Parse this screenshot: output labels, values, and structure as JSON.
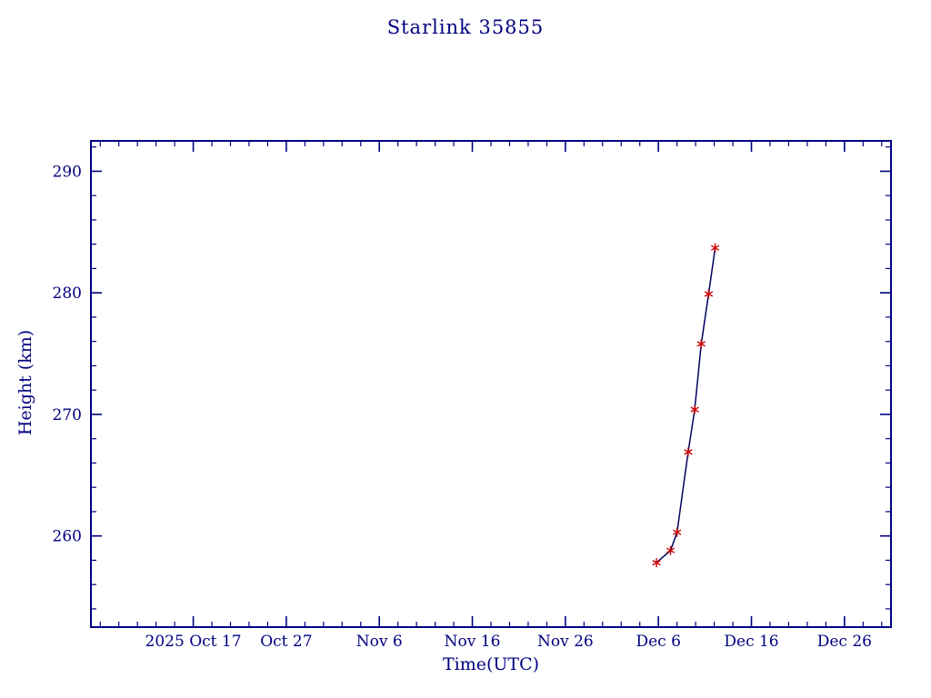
{
  "chart_data": {
    "type": "line",
    "title": "Starlink 35855",
    "xlabel": "Time(UTC)",
    "ylabel": "Height (km)",
    "xlim": [
      0,
      86
    ],
    "x_axis_note": "x values are days; 0 = left edge of frame, tick values align with date labels",
    "ylim": [
      252.5,
      292.5
    ],
    "x_ticks": [
      {
        "label": "2025 Oct 17",
        "value": 11
      },
      {
        "label": "Oct 27",
        "value": 21
      },
      {
        "label": "Nov 6",
        "value": 31
      },
      {
        "label": "Nov 16",
        "value": 41
      },
      {
        "label": "Nov 26",
        "value": 51
      },
      {
        "label": "Dec 6",
        "value": 61
      },
      {
        "label": "Dec 16",
        "value": 71
      },
      {
        "label": "Dec 26",
        "value": 81
      }
    ],
    "x_minor_step": 2,
    "y_ticks": [
      260,
      270,
      280,
      290
    ],
    "y_minor_step": 2,
    "grid": false,
    "legend": "none",
    "series": [
      {
        "name": "height-km",
        "marker": "star",
        "points": [
          {
            "x": 60.8,
            "y": 257.8
          },
          {
            "x": 62.3,
            "y": 258.8
          },
          {
            "x": 63.0,
            "y": 260.3
          },
          {
            "x": 64.2,
            "y": 266.9
          },
          {
            "x": 64.9,
            "y": 270.4
          },
          {
            "x": 65.6,
            "y": 275.8
          },
          {
            "x": 66.4,
            "y": 279.9
          },
          {
            "x": 67.1,
            "y": 283.7
          }
        ]
      }
    ],
    "colors": {
      "axis": "#000080",
      "text": "#000080",
      "line": "#000060",
      "marker": "#cc0000",
      "background": "#ffffff"
    }
  }
}
